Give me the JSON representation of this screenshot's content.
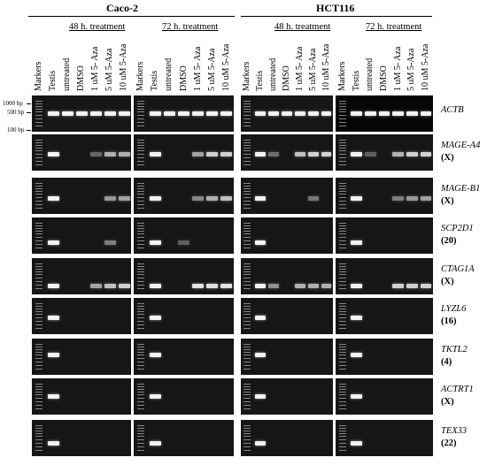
{
  "cell_lines": [
    "Caco-2",
    "HCT116"
  ],
  "treatments": [
    "48 h. treatment",
    "72 h. treatment"
  ],
  "lane_labels_48h": [
    "Markers",
    "Testis",
    "untreated",
    "DMSO",
    "1 uM 5- Aza",
    "5 uM 5-Aza",
    "10 uM 5-Aza"
  ],
  "lane_labels_72h": [
    "Testis",
    "untreated",
    "DMSO",
    "1 uM 5- Aza",
    "5 uM 5-Aza",
    "10 uM 5-Aza"
  ],
  "markers": [
    "1000 bp",
    "500 bp",
    "100 bp"
  ],
  "genes": [
    {
      "name": "ACTB",
      "chrom": ""
    },
    {
      "name": "MAGE-A4",
      "chrom": "(X)"
    },
    {
      "name": "MAGE-B1",
      "chrom": "(X)"
    },
    {
      "name": "SCP2D1",
      "chrom": "(20)"
    },
    {
      "name": "CTAG1A",
      "chrom": "(X)"
    },
    {
      "name": "LYZL6",
      "chrom": "(16)"
    },
    {
      "name": "TKTL2",
      "chrom": "(4)"
    },
    {
      "name": "ACTRT1",
      "chrom": "(X)"
    },
    {
      "name": "TEX33",
      "chrom": "(22)"
    }
  ],
  "band_intensities": {
    "lane_order": [
      "testis",
      "untreated",
      "dmso",
      "aza1",
      "aza5",
      "aza10"
    ],
    "caco2_48h": [
      [
        1,
        1,
        1,
        1,
        1,
        1
      ],
      [
        1,
        0,
        0,
        0.15,
        0.6,
        0.6
      ],
      [
        1,
        0,
        0,
        0,
        0.45,
        0.5
      ],
      [
        1,
        0,
        0,
        0,
        0.3,
        0
      ],
      [
        1,
        0,
        0,
        0.5,
        0.7,
        0.8
      ],
      [
        1,
        0,
        0,
        0,
        0,
        0
      ],
      [
        1,
        0,
        0,
        0,
        0,
        0
      ],
      [
        1,
        0,
        0,
        0,
        0,
        0
      ],
      [
        1,
        0,
        0,
        0,
        0,
        0
      ]
    ],
    "caco2_72h": [
      [
        1,
        1,
        1,
        1,
        1,
        1
      ],
      [
        1,
        0,
        0,
        0.5,
        0.8,
        0.8
      ],
      [
        1,
        0,
        0,
        0.35,
        0.6,
        0.7
      ],
      [
        1,
        0,
        0.1,
        0,
        0,
        0
      ],
      [
        1,
        0,
        0,
        0.9,
        0.9,
        0.9
      ],
      [
        1,
        0,
        0,
        0,
        0,
        0
      ],
      [
        1,
        0,
        0,
        0,
        0,
        0
      ],
      [
        1,
        0,
        0,
        0,
        0,
        0
      ],
      [
        1,
        0,
        0,
        0,
        0,
        0
      ]
    ],
    "hct116_48h": [
      [
        1,
        1,
        1,
        1,
        1,
        1
      ],
      [
        1,
        0.2,
        0,
        0.7,
        0.8,
        0.8
      ],
      [
        1,
        0,
        0,
        0,
        0.25,
        0
      ],
      [
        1,
        0,
        0,
        0,
        0,
        0
      ],
      [
        1,
        0.4,
        0,
        0.6,
        0.6,
        0.6
      ],
      [
        1,
        0,
        0,
        0,
        0,
        0
      ],
      [
        1,
        0,
        0,
        0,
        0,
        0
      ],
      [
        1,
        0,
        0,
        0,
        0,
        0
      ],
      [
        1,
        0,
        0,
        0,
        0,
        0
      ]
    ],
    "hct116_72h": [
      [
        1,
        1,
        1,
        1,
        1,
        1
      ],
      [
        1,
        0.1,
        0,
        0.6,
        0.8,
        0.8
      ],
      [
        1,
        0,
        0,
        0.3,
        0.45,
        0.5
      ],
      [
        1,
        0,
        0,
        0,
        0,
        0
      ],
      [
        1,
        0,
        0,
        0.8,
        0.8,
        0.8
      ],
      [
        1,
        0,
        0,
        0,
        0,
        0
      ],
      [
        1,
        0,
        0,
        0,
        0,
        0
      ],
      [
        1,
        0,
        0,
        0,
        0,
        0
      ],
      [
        1,
        0,
        0,
        0,
        0,
        0
      ]
    ]
  }
}
